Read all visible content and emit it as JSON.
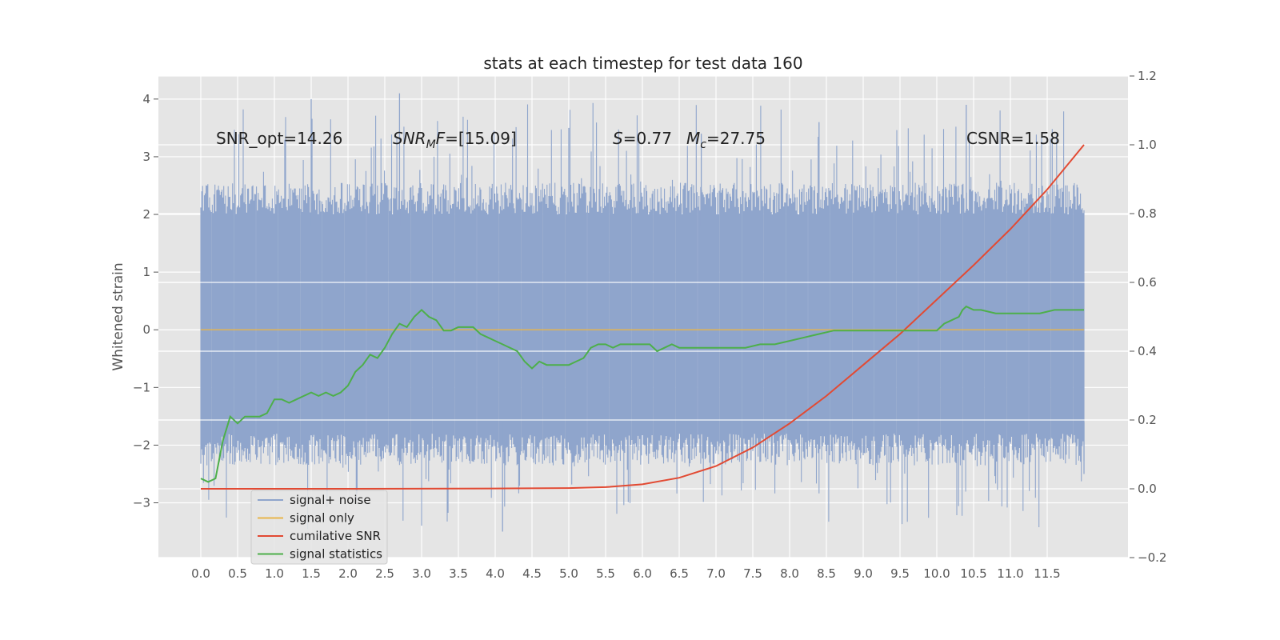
{
  "chart_data": {
    "type": "line",
    "title": "stats at each timestep for test data 160",
    "ylabel": "Whitened strain",
    "xlim": [
      -0.6,
      12.6
    ],
    "ylim": [
      -3.95,
      4.4
    ],
    "y2lim": [
      -0.2,
      1.2
    ],
    "x_ticks": [
      "0.0",
      "0.5",
      "1.0",
      "1.5",
      "2.0",
      "2.5",
      "3.0",
      "3.5",
      "4.0",
      "4.5",
      "5.0",
      "5.5",
      "6.0",
      "6.5",
      "7.0",
      "7.5",
      "8.0",
      "8.5",
      "9.0",
      "9.5",
      "10.0",
      "10.5",
      "11.0",
      "11.5"
    ],
    "y_ticks": [
      -3,
      -2,
      -1,
      0,
      1,
      2,
      3,
      4
    ],
    "y2_ticks": [
      -0.2,
      0.0,
      0.2,
      0.4,
      0.6,
      0.8,
      1.0,
      1.2
    ],
    "annotations": [
      {
        "id": "snr_opt",
        "x": 0.2,
        "text": "SNR_opt=14.26"
      },
      {
        "id": "snr_mf",
        "x": 2.6,
        "text": "=[15.09]"
      },
      {
        "id": "s",
        "x": 5.6,
        "text": "=0.77"
      },
      {
        "id": "mc",
        "x": 6.6,
        "text": "=27.75"
      },
      {
        "id": "csnr",
        "x": 10.4,
        "text": "CSNR=1.58"
      }
    ],
    "noise_band": {
      "x_start": 0.0,
      "x_end": 12.0,
      "typical_low": -1.9,
      "typical_high": 2.1,
      "peak_max": 4.1,
      "peak_min": -3.5
    },
    "series": [
      {
        "name": "signal+ noise",
        "color": "#8fa5cc",
        "axis": "left",
        "x": [
          0.0,
          1.5,
          2.7,
          4.1,
          5.0,
          6.0,
          6.8,
          8.4,
          10.4,
          11.5,
          12.0
        ],
        "y": [
          1.8,
          4.0,
          4.1,
          -3.5,
          3.5,
          1.2,
          3.4,
          3.6,
          3.9,
          2.4,
          -2.5
        ]
      },
      {
        "name": "signal only",
        "color": "#e8b54a",
        "axis": "left",
        "x": [
          0.0,
          6.0,
          10.0,
          12.0
        ],
        "y": [
          0.0,
          0.0,
          0.0,
          0.0
        ]
      },
      {
        "name": "cumilative SNR",
        "color": "#e24a33",
        "axis": "right",
        "x": [
          0.0,
          2.0,
          4.0,
          5.0,
          5.5,
          6.0,
          6.5,
          7.0,
          7.5,
          8.0,
          8.5,
          9.0,
          9.5,
          10.0,
          10.5,
          11.0,
          11.5,
          12.0
        ],
        "y": [
          0.0,
          0.0,
          0.001,
          0.002,
          0.005,
          0.013,
          0.032,
          0.066,
          0.12,
          0.19,
          0.27,
          0.36,
          0.45,
          0.55,
          0.65,
          0.755,
          0.87,
          1.0
        ]
      },
      {
        "name": "signal statistics",
        "color": "#4daf4a",
        "axis": "right",
        "x": [
          0.0,
          0.1,
          0.2,
          0.3,
          0.4,
          0.5,
          0.6,
          0.7,
          0.8,
          0.9,
          1.0,
          1.1,
          1.2,
          1.3,
          1.4,
          1.5,
          1.6,
          1.7,
          1.8,
          1.9,
          2.0,
          2.1,
          2.2,
          2.3,
          2.4,
          2.5,
          2.6,
          2.7,
          2.8,
          2.9,
          3.0,
          3.1,
          3.2,
          3.3,
          3.4,
          3.5,
          3.6,
          3.7,
          3.8,
          3.9,
          4.0,
          4.1,
          4.2,
          4.3,
          4.4,
          4.5,
          4.6,
          4.7,
          4.8,
          4.9,
          5.0,
          5.1,
          5.2,
          5.3,
          5.4,
          5.5,
          5.6,
          5.7,
          5.8,
          5.9,
          6.0,
          6.1,
          6.2,
          6.3,
          6.4,
          6.5,
          6.6,
          6.7,
          6.8,
          6.9,
          7.0,
          7.2,
          7.4,
          7.6,
          7.8,
          8.0,
          8.2,
          8.4,
          8.6,
          8.8,
          9.0,
          9.2,
          9.4,
          9.6,
          9.8,
          10.0,
          10.1,
          10.2,
          10.3,
          10.35,
          10.4,
          10.5,
          10.6,
          10.8,
          11.0,
          11.2,
          11.4,
          11.6,
          11.8,
          12.0
        ],
        "y": [
          0.03,
          0.02,
          0.03,
          0.14,
          0.21,
          0.19,
          0.21,
          0.21,
          0.21,
          0.22,
          0.26,
          0.26,
          0.25,
          0.26,
          0.27,
          0.28,
          0.27,
          0.28,
          0.27,
          0.28,
          0.3,
          0.34,
          0.36,
          0.39,
          0.38,
          0.41,
          0.45,
          0.48,
          0.47,
          0.5,
          0.52,
          0.5,
          0.49,
          0.46,
          0.46,
          0.47,
          0.47,
          0.47,
          0.45,
          0.44,
          0.43,
          0.42,
          0.41,
          0.4,
          0.37,
          0.35,
          0.37,
          0.36,
          0.36,
          0.36,
          0.36,
          0.37,
          0.38,
          0.41,
          0.42,
          0.42,
          0.41,
          0.42,
          0.42,
          0.42,
          0.42,
          0.42,
          0.4,
          0.41,
          0.42,
          0.41,
          0.41,
          0.41,
          0.41,
          0.41,
          0.41,
          0.41,
          0.41,
          0.42,
          0.42,
          0.43,
          0.44,
          0.45,
          0.46,
          0.46,
          0.46,
          0.46,
          0.46,
          0.46,
          0.46,
          0.46,
          0.48,
          0.49,
          0.5,
          0.52,
          0.53,
          0.52,
          0.52,
          0.51,
          0.51,
          0.51,
          0.51,
          0.52,
          0.52,
          0.52
        ]
      }
    ],
    "legend": {
      "placement": "lower-left"
    },
    "grid": true,
    "style": {
      "background": "#e5e5e5",
      "grid": "#ffffff"
    }
  }
}
